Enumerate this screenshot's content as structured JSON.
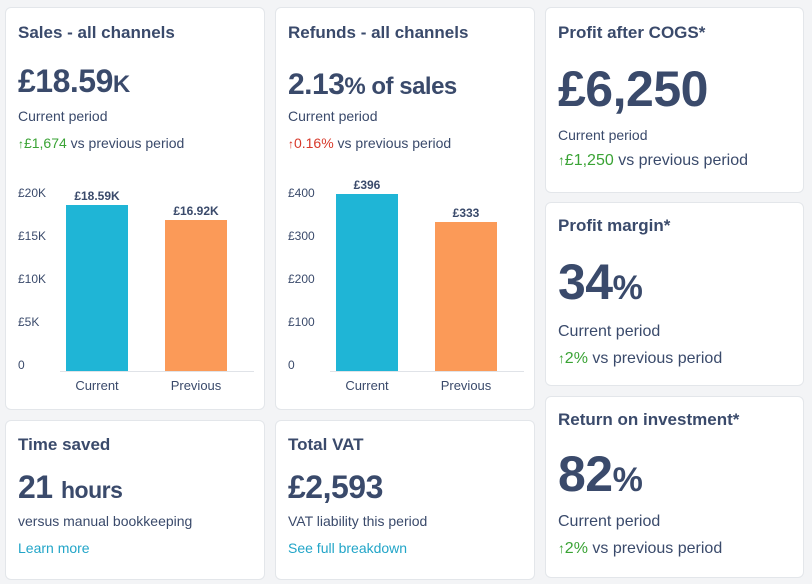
{
  "colors": {
    "current": "#1fb5d6",
    "previous": "#fb9a58",
    "up": "#3aa335",
    "down": "#d8392b",
    "link": "#22a5c8",
    "text": "#3a4a6b"
  },
  "sales": {
    "title": "Sales - all channels",
    "value": "£18.59",
    "unit": "K",
    "period_label": "Current period",
    "delta_arrow": "↑",
    "delta_value": "£1,674",
    "delta_suffix": "vs previous period",
    "chart_data": {
      "type": "bar",
      "categories": [
        "Current",
        "Previous"
      ],
      "values": [
        18.59,
        16.92
      ],
      "value_labels": [
        "£18.59K",
        "£16.92K"
      ],
      "y_ticks": [
        "£20K",
        "£15K",
        "£10K",
        "£5K",
        "0"
      ],
      "ylim": [
        0,
        20
      ],
      "title": "",
      "xlabel": "",
      "ylabel": ""
    }
  },
  "refunds": {
    "title": "Refunds - all channels",
    "value": "2.13",
    "unit": "% of sales",
    "period_label": "Current period",
    "delta_arrow": "↑",
    "delta_value": "0.16%",
    "delta_suffix": "vs previous period",
    "chart_data": {
      "type": "bar",
      "categories": [
        "Current",
        "Previous"
      ],
      "values": [
        396,
        333
      ],
      "value_labels": [
        "£396",
        "£333"
      ],
      "y_ticks": [
        "£400",
        "£300",
        "£200",
        "£100",
        "0"
      ],
      "ylim": [
        0,
        400
      ],
      "title": "",
      "xlabel": "",
      "ylabel": ""
    }
  },
  "profit": {
    "title": "Profit after COGS*",
    "value": "£6,250",
    "period_label": "Current period",
    "delta_arrow": "↑",
    "delta_value": "£1,250",
    "delta_suffix": "vs previous period"
  },
  "margin": {
    "title": "Profit margin*",
    "value": "34",
    "unit": "%",
    "period_label": "Current period",
    "delta_arrow": "↑",
    "delta_value": "2%",
    "delta_suffix": "vs previous period"
  },
  "roi": {
    "title": "Return on investment*",
    "value": "82",
    "unit": "%",
    "period_label": "Current period",
    "delta_arrow": "↑",
    "delta_value": "2%",
    "delta_suffix": "vs previous period"
  },
  "time_saved": {
    "title": "Time saved",
    "value": "21",
    "unit": "hours",
    "description": "versus manual bookkeeping",
    "link": "Learn more"
  },
  "vat": {
    "title": "Total VAT",
    "value": "£2,593",
    "description": "VAT liability this period",
    "link": "See full breakdown"
  }
}
